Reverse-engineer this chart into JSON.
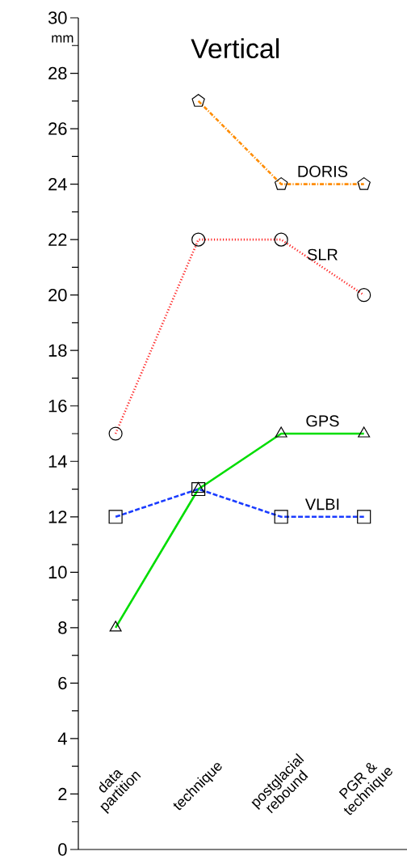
{
  "chart_data": {
    "type": "line",
    "title": "Vertical",
    "ylabel": "mm",
    "categories": [
      "data partition",
      "technique",
      "postglacial rebound",
      "PGR & technique"
    ],
    "series": [
      {
        "name": "DORIS",
        "color": "#ff8c00",
        "values": [
          null,
          27,
          24,
          24
        ],
        "marker": "star",
        "line_style": "dashdot"
      },
      {
        "name": "SLR",
        "color": "#ff2020",
        "values": [
          15,
          22,
          22,
          20
        ],
        "marker": "circle",
        "line_style": "dotted"
      },
      {
        "name": "GPS",
        "color": "#00dd00",
        "values": [
          8,
          13,
          15,
          15
        ],
        "marker": "triangle",
        "line_style": "solid"
      },
      {
        "name": "VLBI",
        "color": "#1a3cff",
        "values": [
          12,
          13,
          12,
          12
        ],
        "marker": "square",
        "line_style": "dashed"
      }
    ],
    "ylim": [
      0,
      30
    ],
    "yticks": [
      0,
      2,
      4,
      6,
      8,
      10,
      12,
      14,
      16,
      18,
      20,
      22,
      24,
      26,
      28,
      30
    ],
    "grid": false
  }
}
